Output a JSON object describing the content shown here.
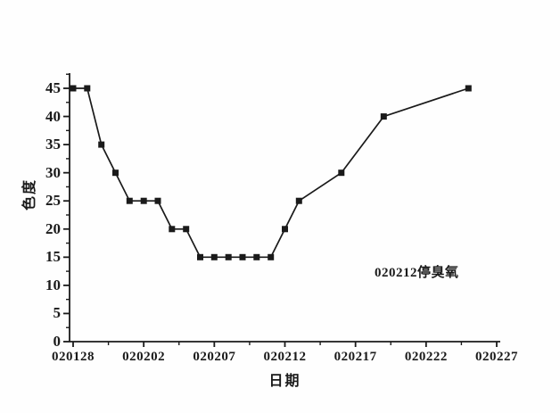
{
  "chart_data": {
    "type": "line",
    "title": "",
    "xlabel": "日期",
    "ylabel": "色度",
    "annotation": "020212停臭氧",
    "legend": [],
    "grid": false,
    "line_color": "#1a1a1a",
    "marker": "filled-square",
    "x_tick_labels": [
      "020128",
      "020202",
      "020207",
      "020212",
      "020217",
      "020222",
      "020227"
    ],
    "x_tick_days": [
      0,
      5,
      10,
      15,
      20,
      25,
      30
    ],
    "x_minor_step_days": 2.5,
    "xlim_days": [
      0,
      30
    ],
    "y_ticks": [
      0,
      5,
      10,
      15,
      20,
      25,
      30,
      35,
      40,
      45
    ],
    "y_minor_step": 2.5,
    "ylim": [
      0,
      47.5
    ],
    "series": [
      {
        "name": "色度",
        "points": [
          {
            "date": "020128",
            "day": 0,
            "value": 45
          },
          {
            "date": "020129",
            "day": 1,
            "value": 45
          },
          {
            "date": "020130",
            "day": 2,
            "value": 35
          },
          {
            "date": "020131",
            "day": 3,
            "value": 30
          },
          {
            "date": "020201",
            "day": 4,
            "value": 25
          },
          {
            "date": "020202",
            "day": 5,
            "value": 25
          },
          {
            "date": "020203",
            "day": 6,
            "value": 25
          },
          {
            "date": "020204",
            "day": 7,
            "value": 20
          },
          {
            "date": "020205",
            "day": 8,
            "value": 20
          },
          {
            "date": "020206",
            "day": 9,
            "value": 15
          },
          {
            "date": "020207",
            "day": 10,
            "value": 15
          },
          {
            "date": "020208",
            "day": 11,
            "value": 15
          },
          {
            "date": "020209",
            "day": 12,
            "value": 15
          },
          {
            "date": "020210",
            "day": 13,
            "value": 15
          },
          {
            "date": "020211",
            "day": 14,
            "value": 15
          },
          {
            "date": "020212",
            "day": 15,
            "value": 20
          },
          {
            "date": "020213",
            "day": 16,
            "value": 25
          },
          {
            "date": "020216",
            "day": 19,
            "value": 30
          },
          {
            "date": "020219",
            "day": 22,
            "value": 40
          },
          {
            "date": "020225",
            "day": 28,
            "value": 45
          }
        ]
      }
    ]
  }
}
